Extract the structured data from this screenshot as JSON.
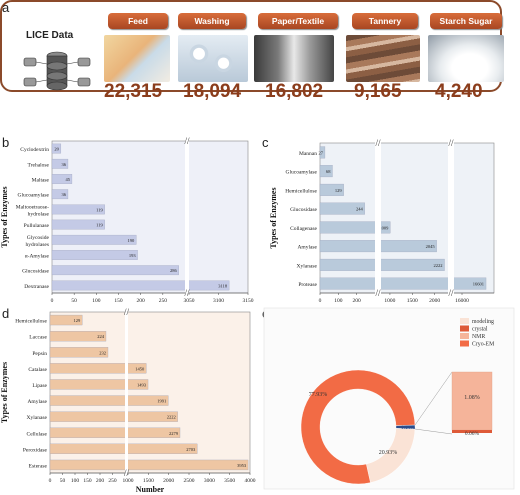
{
  "panel_labels": {
    "a": "a",
    "b": "b",
    "c": "c",
    "d": "d",
    "e": "e"
  },
  "lice": {
    "title": "LICE Data",
    "categories": [
      {
        "label": "Feed",
        "count": "22,315"
      },
      {
        "label": "Washing",
        "count": "18,094"
      },
      {
        "label": "Paper/Textile",
        "count": "16,802"
      },
      {
        "label": "Tannery",
        "count": "9,165"
      },
      {
        "label": "Starch Sugar",
        "count": "4,240"
      }
    ]
  },
  "chart_data": [
    {
      "id": "b",
      "type": "bar",
      "orientation": "horizontal",
      "xlabel": "Number",
      "ylabel": "Types of Enzymes",
      "categories": [
        "Cyclodextrin",
        "Trehalose",
        "Maltase",
        "Glucoamylase",
        "Maltooetraose-hydrolase",
        "Pullulanase",
        "Glycoside hydrolases",
        "α-Amylase",
        "Glucosidase",
        "Dextranase"
      ],
      "values": [
        20,
        36,
        45,
        36,
        119,
        119,
        190,
        193,
        286,
        3118
      ],
      "axis_break": {
        "left_range": [
          0,
          300
        ],
        "right_range": [
          3050,
          3150
        ]
      },
      "xticks": [
        "0",
        "50",
        "100",
        "150",
        "200",
        "250",
        "3050",
        "3100",
        "3150"
      ],
      "colors": {
        "bar": "#c4cae6"
      }
    },
    {
      "id": "c",
      "type": "bar",
      "orientation": "horizontal",
      "xlabel": "Number",
      "ylabel": "Types of Enzymes",
      "categories": [
        "Mannan",
        "Glucoamylase",
        "Hemicellulose",
        "Glucosidase",
        "Collagenase",
        "Amylase",
        "Xylanase",
        "Protease"
      ],
      "values": [
        27,
        68,
        129,
        244,
        1009,
        2045,
        2222,
        16601
      ],
      "axis_break": {
        "segments": [
          [
            0,
            300
          ],
          [
            800,
            2300
          ],
          [
            15800,
            16800
          ]
        ]
      },
      "xticks": [
        "0",
        "100",
        "200",
        "1000",
        "1500",
        "2000",
        "16000"
      ],
      "colors": {
        "bar": "#b9cadb"
      }
    },
    {
      "id": "d",
      "type": "bar",
      "orientation": "horizontal",
      "xlabel": "Number",
      "ylabel": "Types of Enzymes",
      "categories": [
        "Hemicellulose",
        "Laccase",
        "Pepsin",
        "Catalase",
        "Lipase",
        "Amylase",
        "Xylanase",
        "Cellulase",
        "Peroxidase",
        "Esterase"
      ],
      "values": [
        129,
        224,
        232,
        1450,
        1493,
        1991,
        2222,
        2279,
        2703,
        3953
      ],
      "axis_break": {
        "left_range": [
          0,
          300
        ],
        "right_range": [
          1000,
          4000
        ]
      },
      "xticks": [
        "0",
        "50",
        "100",
        "150",
        "200",
        "250",
        "1000",
        "1500",
        "2000",
        "2500",
        "3000",
        "3500",
        "4000"
      ],
      "colors": {
        "bar": "#eec6a3"
      }
    },
    {
      "id": "e",
      "type": "pie",
      "style": "donut",
      "series": [
        {
          "name": "modeling",
          "value": 20.93,
          "label": "20.93%",
          "color": "#fae3d6"
        },
        {
          "name": "crystal",
          "value": 0.06,
          "label": "0.06%",
          "color": "#de5a38"
        },
        {
          "name": "NMR",
          "value": 1.08,
          "label": "1.08%",
          "color": "#f5b49a"
        },
        {
          "name": "Cryo-EM",
          "value": 77.93,
          "label": "77.93%",
          "color": "#f26b45"
        }
      ],
      "highlight": {
        "label": "1.14%",
        "color": "#2b4d8c"
      },
      "legend": "top-right"
    }
  ]
}
